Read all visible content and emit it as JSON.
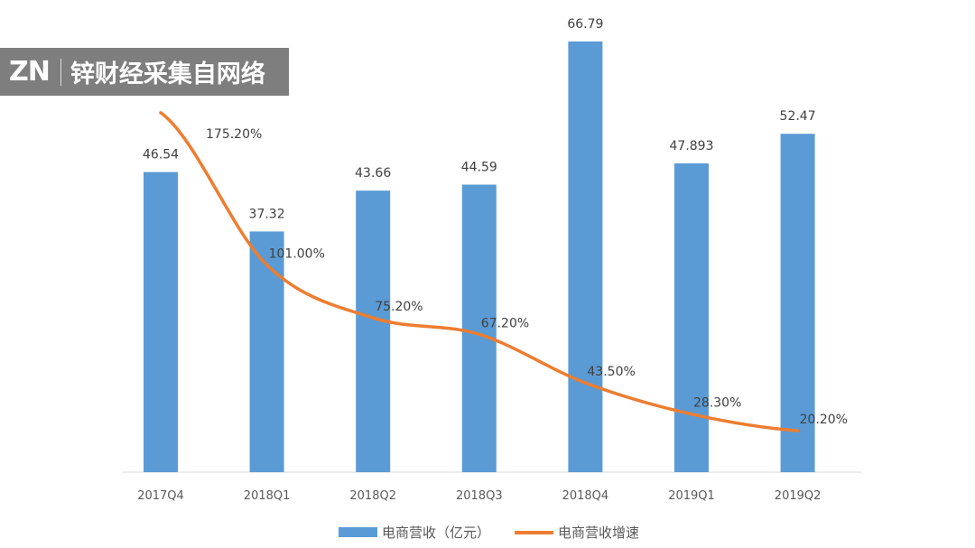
{
  "watermark": {
    "logo": "ZN",
    "text": "锌财经采集自网络"
  },
  "chart_data": {
    "type": "bar",
    "categories": [
      "2017Q4",
      "2018Q1",
      "2018Q2",
      "2018Q3",
      "2018Q4",
      "2019Q1",
      "2019Q2"
    ],
    "series": [
      {
        "name": "电商营收（亿元）",
        "type": "bar",
        "color": "#5B9BD5",
        "values": [
          46.54,
          37.32,
          43.66,
          44.59,
          66.79,
          47.893,
          52.47
        ],
        "labels": [
          "46.54",
          "37.32",
          "43.66",
          "44.59",
          "66.79",
          "47.893",
          "52.47"
        ]
      },
      {
        "name": "电商营收增速",
        "type": "line",
        "color": "#ED7D31",
        "values": [
          175.2,
          101.0,
          75.2,
          67.2,
          43.5,
          28.3,
          20.2
        ],
        "labels": [
          "175.20%",
          "101.00%",
          "75.20%",
          "67.20%",
          "43.50%",
          "28.30%",
          "20.20%"
        ]
      }
    ],
    "title": "",
    "xlabel": "",
    "ylabel": "",
    "ylim_bar": [
      0,
      70
    ],
    "ylim_line": [
      0,
      220
    ],
    "grid": false,
    "legend_position": "bottom"
  }
}
